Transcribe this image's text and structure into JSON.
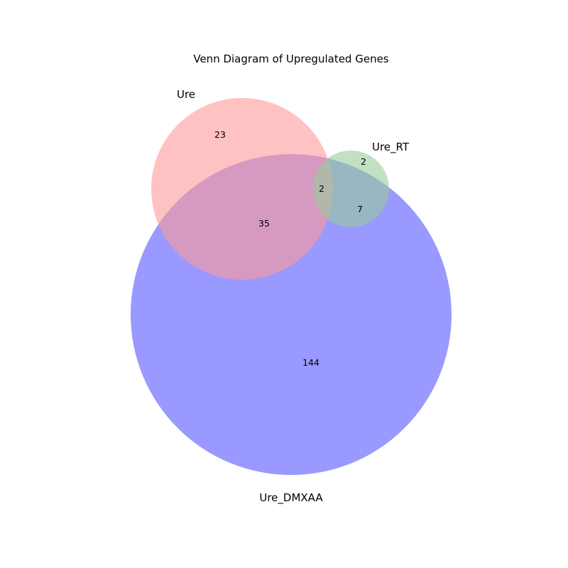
{
  "title": "Venn Diagram of Upregulated Genes",
  "sets": [
    {
      "key": "ure",
      "label": "Ure",
      "color": "#ff9999"
    },
    {
      "key": "ure_rt",
      "label": "Ure_RT",
      "color": "#99cc99"
    },
    {
      "key": "ure_dmxaa",
      "label": "Ure_DMXAA",
      "color": "#9999ff"
    }
  ],
  "regions": {
    "ure_only": "23",
    "ure_rt_only": "2",
    "ure_and_ure_rt_and_ure_dmxaa": "2",
    "ure_rt_and_ure_dmxaa": "7",
    "ure_and_ure_dmxaa": "35",
    "ure_dmxaa_only": "144"
  }
}
